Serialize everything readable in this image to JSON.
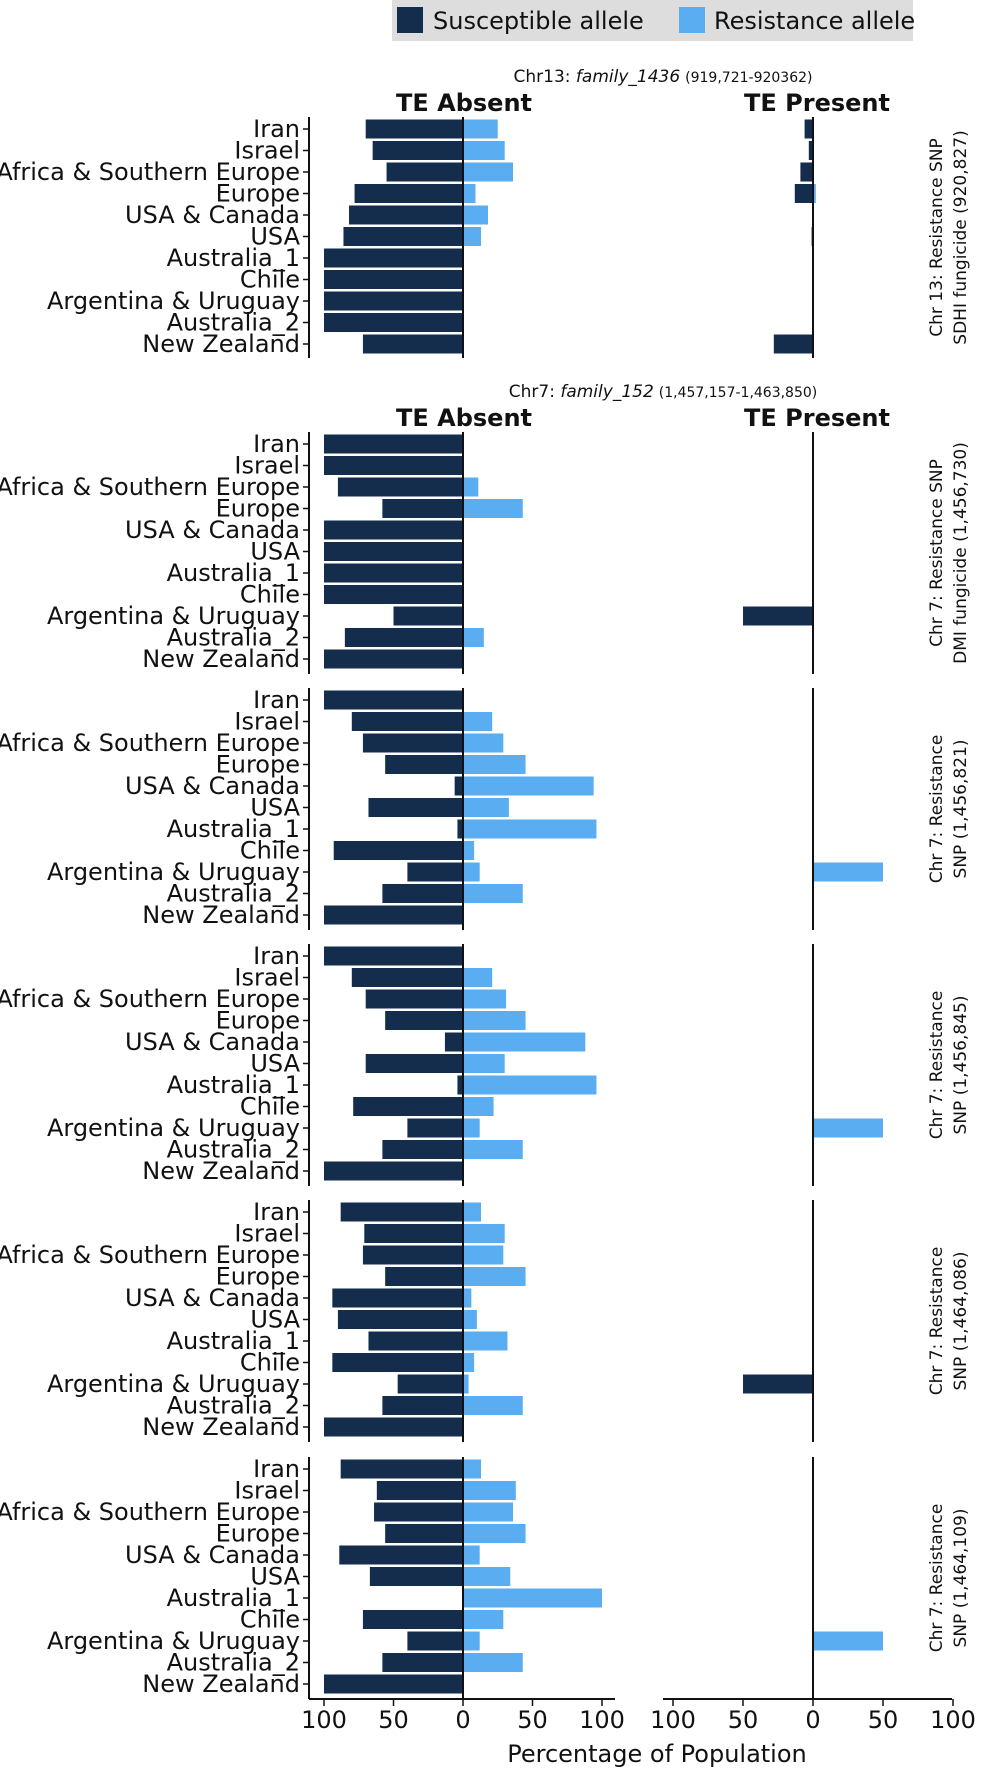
{
  "chart_data": {
    "type": "bar",
    "orientation": "horizontal-diverging",
    "legend": {
      "position": "top",
      "items": [
        {
          "label": "Susceptible allele",
          "color": "#142d4c"
        },
        {
          "label": "Resistance allele",
          "color": "#5aadf0"
        }
      ]
    },
    "colors": {
      "susceptible": "#142d4c",
      "resistance": "#5aadf0",
      "legend_bg": "#dddddd"
    },
    "categories": [
      "Iran",
      "Israel",
      "Africa & Southern Europe",
      "Europe",
      "USA & Canada",
      "USA",
      "Australia_1",
      "Chile",
      "Argentina & Uruguay",
      "Australia_2",
      "New Zealand"
    ],
    "column_headers": {
      "absent": "TE Absent",
      "present": "TE Present"
    },
    "x_ticks": [
      "100",
      "50",
      "0",
      "50",
      "100"
    ],
    "xlabel": "Percentage of Population",
    "xlim": [
      -100,
      100
    ],
    "sections": [
      {
        "title_prefix": "Chr13: ",
        "title_italic": "family_1436",
        "title_coords": "(919,721-920362)"
      },
      {
        "title_prefix": "Chr7: ",
        "title_italic": "family_152",
        "title_coords": "(1,457,157-1,463,850)"
      }
    ],
    "panels": [
      {
        "section": 0,
        "facet_label": [
          "Chr 13: Resistance SNP",
          "SDHI fungicide (920,827)"
        ],
        "absent": {
          "susceptible": [
            70,
            65,
            55,
            78,
            82,
            86,
            100,
            100,
            100,
            100,
            72
          ],
          "resistance": [
            25,
            30,
            36,
            9,
            18,
            13,
            0,
            0,
            0,
            0,
            0
          ]
        },
        "present": {
          "susceptible": [
            6,
            3,
            9,
            13,
            0,
            1,
            0,
            0,
            0,
            0,
            28
          ],
          "resistance": [
            0,
            0,
            0,
            2,
            0,
            0,
            0,
            0,
            0,
            0,
            0
          ]
        }
      },
      {
        "section": 1,
        "facet_label": [
          "Chr 7: Resistance SNP",
          "DMI fungicide (1,456,730)"
        ],
        "absent": {
          "susceptible": [
            100,
            100,
            90,
            58,
            100,
            100,
            100,
            100,
            50,
            85,
            100
          ],
          "resistance": [
            0,
            0,
            11,
            43,
            0,
            0,
            0,
            0,
            0,
            15,
            0
          ]
        },
        "present": {
          "susceptible": [
            0,
            0,
            0,
            0,
            0,
            0,
            0,
            0,
            50,
            0,
            0
          ],
          "resistance": [
            0,
            0,
            0,
            0,
            0,
            0,
            0,
            0,
            0,
            0,
            0
          ]
        }
      },
      {
        "section": null,
        "facet_label": [
          "Chr 7: Resistance",
          "SNP (1,456,821)"
        ],
        "absent": {
          "susceptible": [
            100,
            80,
            72,
            56,
            6,
            68,
            4,
            93,
            40,
            58,
            100
          ],
          "resistance": [
            0,
            21,
            29,
            45,
            94,
            33,
            96,
            8,
            12,
            43,
            0
          ]
        },
        "present": {
          "susceptible": [
            0,
            0,
            0,
            0,
            0,
            0,
            0,
            0,
            0,
            0,
            0
          ],
          "resistance": [
            0,
            0,
            0,
            0,
            0,
            0,
            0,
            0,
            50,
            0,
            0
          ]
        }
      },
      {
        "section": null,
        "facet_label": [
          "Chr 7: Resistance",
          "SNP (1,456,845)"
        ],
        "absent": {
          "susceptible": [
            100,
            80,
            70,
            56,
            13,
            70,
            4,
            79,
            40,
            58,
            100
          ],
          "resistance": [
            0,
            21,
            31,
            45,
            88,
            30,
            96,
            22,
            12,
            43,
            0
          ]
        },
        "present": {
          "susceptible": [
            0,
            0,
            0,
            0,
            0,
            0,
            0,
            0,
            0,
            0,
            0
          ],
          "resistance": [
            0,
            0,
            0,
            0,
            0,
            0,
            0,
            0,
            50,
            0,
            0
          ]
        }
      },
      {
        "section": null,
        "facet_label": [
          "Chr 7: Resistance",
          "SNP (1,464,086)"
        ],
        "absent": {
          "susceptible": [
            88,
            71,
            72,
            56,
            94,
            90,
            68,
            94,
            47,
            58,
            100
          ],
          "resistance": [
            13,
            30,
            29,
            45,
            6,
            10,
            32,
            8,
            4,
            43,
            0
          ]
        },
        "present": {
          "susceptible": [
            0,
            0,
            0,
            0,
            0,
            0,
            0,
            0,
            50,
            0,
            0
          ],
          "resistance": [
            0,
            0,
            0,
            0,
            0,
            0,
            0,
            0,
            0,
            0,
            0
          ]
        }
      },
      {
        "section": null,
        "facet_label": [
          "Chr 7: Resistance",
          "SNP (1,464,109)"
        ],
        "absent": {
          "susceptible": [
            88,
            62,
            64,
            56,
            89,
            67,
            0,
            72,
            40,
            58,
            100
          ],
          "resistance": [
            13,
            38,
            36,
            45,
            12,
            34,
            100,
            29,
            12,
            43,
            0
          ]
        },
        "present": {
          "susceptible": [
            0,
            0,
            0,
            0,
            0,
            0,
            0,
            0,
            0,
            0,
            0
          ],
          "resistance": [
            0,
            0,
            0,
            0,
            0,
            0,
            0,
            0,
            50,
            0,
            0
          ]
        }
      }
    ]
  }
}
